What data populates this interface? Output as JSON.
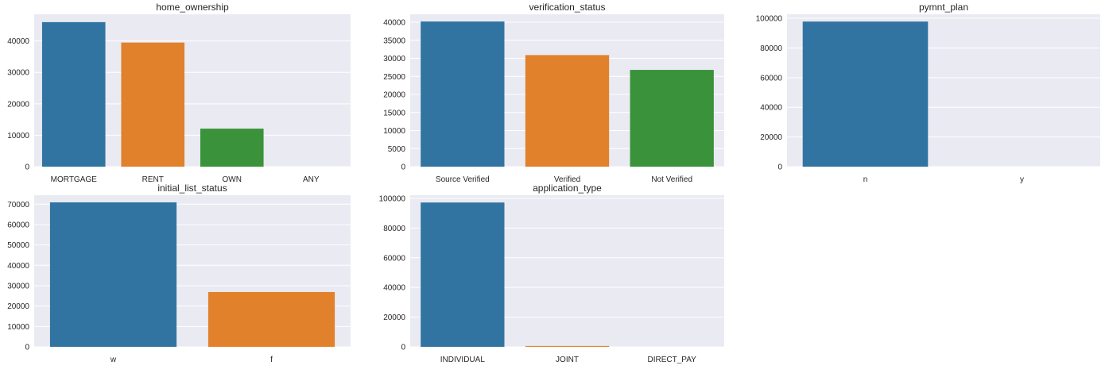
{
  "chart_data": [
    {
      "type": "bar",
      "title": "home_ownership",
      "xlabel": "",
      "ylabel": "",
      "categories": [
        "MORTGAGE",
        "RENT",
        "OWN",
        "ANY"
      ],
      "values": [
        46000,
        39500,
        12100,
        0
      ],
      "ylim": [
        0,
        48500
      ],
      "yticks": [
        0,
        10000,
        20000,
        30000,
        40000
      ],
      "colors": [
        "#3274a1",
        "#e1812c",
        "#3a923a",
        "#c03d3e"
      ],
      "grid": true
    },
    {
      "type": "bar",
      "title": "verification_status",
      "xlabel": "",
      "ylabel": "",
      "categories": [
        "Source Verified",
        "Verified",
        "Not Verified"
      ],
      "values": [
        40200,
        30900,
        26800
      ],
      "ylim": [
        0,
        42200
      ],
      "yticks": [
        0,
        5000,
        10000,
        15000,
        20000,
        25000,
        30000,
        35000,
        40000
      ],
      "colors": [
        "#3274a1",
        "#e1812c",
        "#3a923a"
      ],
      "grid": true
    },
    {
      "type": "bar",
      "title": "pymnt_plan",
      "xlabel": "",
      "ylabel": "",
      "categories": [
        "n",
        "y"
      ],
      "values": [
        97800,
        0
      ],
      "ylim": [
        0,
        102700
      ],
      "yticks": [
        0,
        20000,
        40000,
        60000,
        80000,
        100000
      ],
      "colors": [
        "#3274a1",
        "#e1812c"
      ],
      "grid": true
    },
    {
      "type": "bar",
      "title": "initial_list_status",
      "xlabel": "",
      "ylabel": "",
      "categories": [
        "w",
        "f"
      ],
      "values": [
        70900,
        26900
      ],
      "ylim": [
        0,
        74400
      ],
      "yticks": [
        0,
        10000,
        20000,
        30000,
        40000,
        50000,
        60000,
        70000
      ],
      "colors": [
        "#3274a1",
        "#e1812c"
      ],
      "grid": true
    },
    {
      "type": "bar",
      "title": "application_type",
      "xlabel": "",
      "ylabel": "",
      "categories": [
        "INDIVIDUAL",
        "JOINT",
        "DIRECT_PAY"
      ],
      "values": [
        97200,
        600,
        0
      ],
      "ylim": [
        0,
        102100
      ],
      "yticks": [
        0,
        20000,
        40000,
        60000,
        80000,
        100000
      ],
      "colors": [
        "#3274a1",
        "#e1812c",
        "#3a923a"
      ],
      "grid": true
    }
  ]
}
